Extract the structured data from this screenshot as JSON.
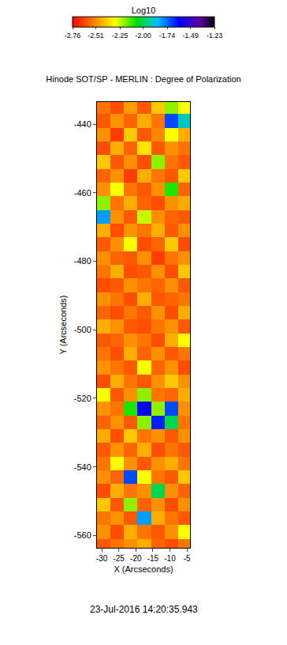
{
  "chart_data": {
    "type": "heatmap",
    "title": "Hinode SOT/SP - MERLIN : Degree of Polarization",
    "x_label": "X (Arcseconds)",
    "y_label": "Y (Arcseconds)",
    "colorbar_title": "Log10",
    "annotations": [
      "23-Jul-2016 14:20:35.943"
    ],
    "x": [
      -29.5,
      -25.5,
      -21.5,
      -17.5,
      -13.5,
      -9.5,
      -5.5
    ],
    "y": [
      -435,
      -439,
      -443,
      -447,
      -451,
      -455,
      -459,
      -463,
      -467,
      -471,
      -475,
      -479,
      -483,
      -487,
      -491,
      -495,
      -499,
      -503,
      -507,
      -511,
      -515,
      -519,
      -523,
      -527,
      -531,
      -535,
      -539,
      -543,
      -547,
      -551,
      -555,
      -559,
      -563
    ],
    "z": [
      [
        -2.55,
        -2.62,
        -2.48,
        -2.6,
        -2.4,
        -2.2,
        -2.3
      ],
      [
        -2.6,
        -2.5,
        -2.58,
        -2.45,
        -2.55,
        -1.7,
        -1.9
      ],
      [
        -2.5,
        -2.65,
        -2.4,
        -2.6,
        -2.52,
        -2.3,
        -2.45
      ],
      [
        -2.62,
        -2.45,
        -2.58,
        -2.35,
        -2.6,
        -2.5,
        -2.55
      ],
      [
        -2.4,
        -2.6,
        -2.5,
        -2.62,
        -2.2,
        -2.55,
        -2.6
      ],
      [
        -2.58,
        -2.5,
        -2.65,
        -2.45,
        -2.55,
        -2.6,
        -2.4
      ],
      [
        -2.5,
        -2.3,
        -2.55,
        -2.6,
        -2.5,
        -2.1,
        -2.58
      ],
      [
        -2.2,
        -2.55,
        -2.45,
        -2.58,
        -2.62,
        -2.5,
        -2.45
      ],
      [
        -1.8,
        -2.5,
        -2.6,
        -2.25,
        -2.5,
        -2.58,
        -2.6
      ],
      [
        -2.45,
        -2.62,
        -2.5,
        -2.55,
        -2.45,
        -2.6,
        -2.5
      ],
      [
        -2.6,
        -2.5,
        -2.3,
        -2.62,
        -2.58,
        -2.4,
        -2.62
      ],
      [
        -2.5,
        -2.58,
        -2.6,
        -2.5,
        -2.65,
        -2.55,
        -2.5
      ],
      [
        -2.55,
        -2.45,
        -2.62,
        -2.6,
        -2.5,
        -2.62,
        -2.4
      ],
      [
        -2.62,
        -2.6,
        -2.5,
        -2.55,
        -2.58,
        -2.5,
        -2.6
      ],
      [
        -2.5,
        -2.55,
        -2.62,
        -2.45,
        -2.6,
        -2.58,
        -2.55
      ],
      [
        -2.58,
        -2.62,
        -2.55,
        -2.6,
        -2.5,
        -2.62,
        -2.45
      ],
      [
        -2.45,
        -2.5,
        -2.6,
        -2.62,
        -2.55,
        -2.5,
        -2.6
      ],
      [
        -2.6,
        -2.58,
        -2.5,
        -2.55,
        -2.62,
        -2.45,
        -2.3
      ],
      [
        -2.55,
        -2.62,
        -2.45,
        -2.58,
        -2.5,
        -2.6,
        -2.55
      ],
      [
        -2.5,
        -2.55,
        -2.6,
        -2.3,
        -2.58,
        -2.5,
        -2.62
      ],
      [
        -2.62,
        -2.45,
        -2.55,
        -2.6,
        -2.5,
        -2.4,
        -2.5
      ],
      [
        -2.3,
        -2.6,
        -2.5,
        -2.2,
        -2.55,
        -2.58,
        -2.45
      ],
      [
        -2.5,
        -2.55,
        -2.1,
        -1.6,
        -2.2,
        -1.7,
        -2.5
      ],
      [
        -2.58,
        -2.5,
        -2.6,
        -2.2,
        -1.65,
        -2.0,
        -2.55
      ],
      [
        -2.45,
        -2.62,
        -2.4,
        -2.55,
        -2.5,
        -2.6,
        -2.5
      ],
      [
        -2.6,
        -2.5,
        -2.58,
        -2.45,
        -2.62,
        -2.55,
        -2.6
      ],
      [
        -2.55,
        -2.3,
        -2.5,
        -2.6,
        -2.5,
        -2.45,
        -2.55
      ],
      [
        -2.5,
        -2.58,
        -1.7,
        -2.3,
        -2.55,
        -2.6,
        -2.4
      ],
      [
        -2.62,
        -2.45,
        -2.55,
        -2.5,
        -2.0,
        -2.5,
        -2.58
      ],
      [
        -2.4,
        -2.6,
        -2.2,
        -2.58,
        -2.5,
        -2.62,
        -2.5
      ],
      [
        -2.55,
        -2.5,
        -2.6,
        -1.8,
        -2.45,
        -2.55,
        -2.6
      ],
      [
        -2.5,
        -2.62,
        -2.45,
        -2.55,
        -2.6,
        -2.5,
        -2.3
      ],
      [
        -2.6,
        -2.55,
        -2.5,
        -2.45,
        -2.58,
        -2.62,
        -2.55
      ]
    ],
    "xlim": [
      -31.4,
      -4.1
    ],
    "ylim": [
      -563.7,
      -433.4
    ],
    "xticks": [
      -30,
      -25,
      -20,
      -15,
      -10,
      -5
    ],
    "yticks": [
      -560,
      -540,
      -520,
      -500,
      -480,
      -460,
      -440
    ],
    "colorbar_range": [
      -2.76,
      -1.23
    ],
    "colorbar_ticks": [
      -2.76,
      -2.51,
      -2.25,
      {
        "value": -2.0,
        "label": "-2.00"
      },
      -1.74,
      -1.49,
      -1.23
    ]
  }
}
